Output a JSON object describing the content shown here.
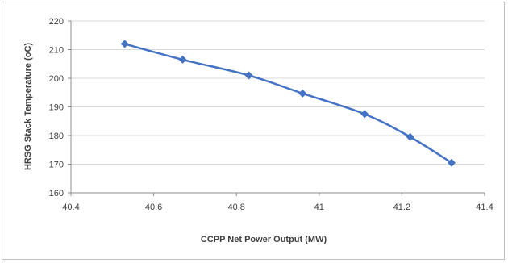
{
  "chart_data": {
    "type": "line",
    "title": "",
    "xlabel": "CCPP Net Power Output (MW)",
    "ylabel": "HRSG Stack Temperature (oC)",
    "xlim": [
      40.4,
      41.4
    ],
    "ylim": [
      160,
      220
    ],
    "x_ticks": [
      "40.4",
      "40.6",
      "40.8",
      "41",
      "41.2",
      "41.4"
    ],
    "y_ticks": [
      "160",
      "170",
      "180",
      "190",
      "200",
      "210",
      "220"
    ],
    "grid": "horizontal",
    "series": [
      {
        "color": "#4472c4",
        "marker": "diamond",
        "points": [
          [
            40.53,
            212.0
          ],
          [
            40.67,
            206.5
          ],
          [
            40.83,
            201.0
          ],
          [
            40.96,
            194.7
          ],
          [
            41.11,
            187.5
          ],
          [
            41.22,
            179.5
          ],
          [
            41.32,
            170.5
          ]
        ]
      }
    ]
  }
}
